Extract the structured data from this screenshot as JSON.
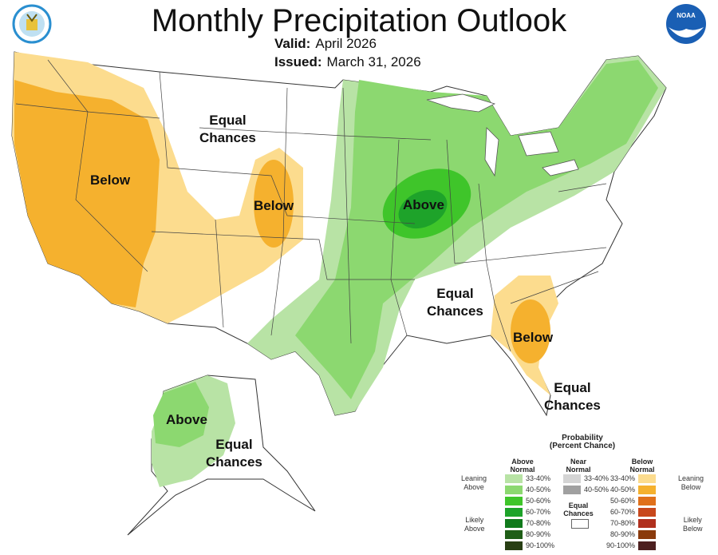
{
  "header": {
    "title": "Monthly Precipitation Outlook",
    "valid_label": "Valid:",
    "valid_value": "April 2026",
    "issued_label": "Issued:",
    "issued_value": "March 31, 2026",
    "left_logo": "Department of Commerce seal",
    "right_logo": "NOAA",
    "right_logo_text": "NOAA"
  },
  "map_labels": {
    "equal_nw": [
      "Equal",
      "Chances"
    ],
    "below_west": "Below",
    "below_co": "Below",
    "above_mw": "Above",
    "equal_se": [
      "Equal",
      "Chances"
    ],
    "below_se": "Below",
    "equal_fl": [
      "Equal",
      "Chances"
    ],
    "above_ak": "Above",
    "equal_ak": [
      "Equal",
      "Chances"
    ]
  },
  "colors": {
    "leaning_below_33_40": "#fcdc8e",
    "below_40_50": "#f5b12e",
    "leaning_above_33_40": "#b8e3a5",
    "above_40_50": "#8cd870",
    "above_50_60": "#3fc52a",
    "above_60_70": "#1ea32a",
    "equal_chances": "#ffffff"
  },
  "legend": {
    "title": "Probability",
    "subtitle": "(Percent Chance)",
    "above_header": [
      "Above",
      "Normal"
    ],
    "near_header": [
      "Near",
      "Normal"
    ],
    "below_header": [
      "Below",
      "Normal"
    ],
    "leaning_above": [
      "Leaning",
      "Above"
    ],
    "likely_above": [
      "Likely",
      "Above"
    ],
    "leaning_below": [
      "Leaning",
      "Below"
    ],
    "likely_below": [
      "Likely",
      "Below"
    ],
    "equal_chances": [
      "Equal",
      "Chances"
    ],
    "above": [
      {
        "range": "33-40%",
        "color": "#b8e3a5"
      },
      {
        "range": "40-50%",
        "color": "#8cd870"
      },
      {
        "range": "50-60%",
        "color": "#3fc52a"
      },
      {
        "range": "60-70%",
        "color": "#1ea32a"
      },
      {
        "range": "70-80%",
        "color": "#117a1c"
      },
      {
        "range": "80-90%",
        "color": "#1f5e17"
      },
      {
        "range": "90-100%",
        "color": "#283f14"
      }
    ],
    "near": [
      {
        "range": "33-40%",
        "color": "#d4d4d4"
      },
      {
        "range": "40-50%",
        "color": "#a0a0a0"
      }
    ],
    "below": [
      {
        "range": "33-40%",
        "color": "#fcdc8e"
      },
      {
        "range": "40-50%",
        "color": "#f5b12e"
      },
      {
        "range": "50-60%",
        "color": "#e0701a"
      },
      {
        "range": "60-70%",
        "color": "#c8481c"
      },
      {
        "range": "70-80%",
        "color": "#b0301e"
      },
      {
        "range": "80-90%",
        "color": "#8a3a0c"
      },
      {
        "range": "90-100%",
        "color": "#4d2020"
      }
    ]
  }
}
